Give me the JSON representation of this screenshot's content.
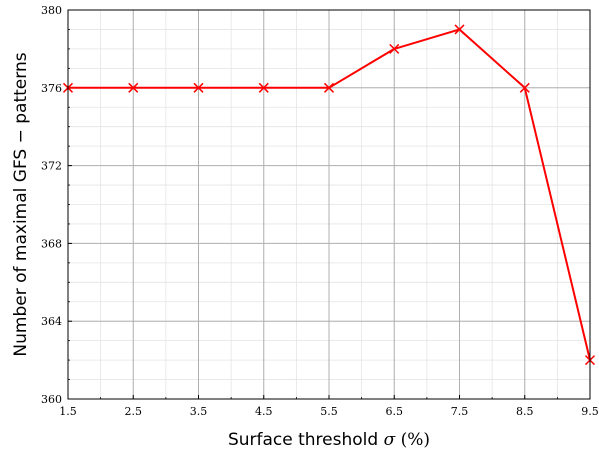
{
  "chart_data": {
    "type": "line",
    "xlabel_prefix": "Surface threshold ",
    "xlabel_symbol": "σ",
    "xlabel_suffix": " (%)",
    "ylabel": "Number of maximal GFS − patterns",
    "x": [
      1.5,
      2.5,
      3.5,
      4.5,
      5.5,
      6.5,
      7.5,
      8.5,
      9.5
    ],
    "x_tick_labels": [
      "1.5",
      "2.5",
      "3.5",
      "4.5",
      "5.5",
      "6.5",
      "7.5",
      "8.5",
      "9.5"
    ],
    "y_ticks": [
      360,
      364,
      368,
      372,
      376,
      380
    ],
    "y_tick_labels": [
      "360",
      "364",
      "368",
      "372",
      "376",
      "380"
    ],
    "xlim": [
      1.5,
      9.5
    ],
    "ylim": [
      360,
      380
    ],
    "grid": true,
    "minor_grid": true,
    "series": [
      {
        "values": [
          376,
          376,
          376,
          376,
          376,
          378,
          379,
          376,
          362
        ],
        "color": "#ff0000",
        "marker": "x"
      }
    ]
  }
}
